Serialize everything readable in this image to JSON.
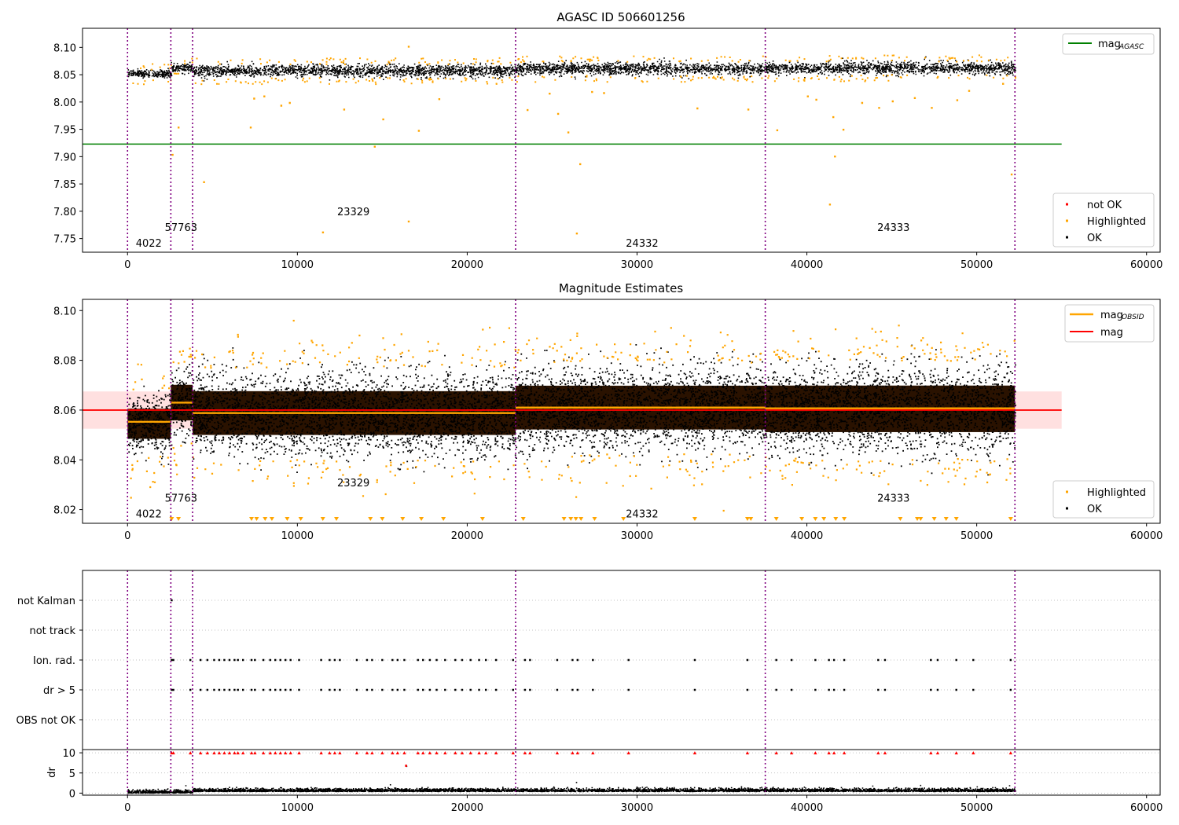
{
  "chart_data": [
    {
      "type": "scatter",
      "title": "AGASC ID 506601256",
      "xlim": [
        -2650,
        60800
      ],
      "ylim": [
        7.725,
        8.135
      ],
      "xticks": [
        0,
        10000,
        20000,
        30000,
        40000,
        50000,
        60000
      ],
      "yticks": [
        7.75,
        7.8,
        7.85,
        7.9,
        7.95,
        8.0,
        8.05,
        8.1
      ],
      "ytick_labels": [
        "7.75",
        "7.80",
        "7.85",
        "7.90",
        "7.95",
        "8.00",
        "8.05",
        "8.10"
      ],
      "hline": {
        "label": "mag",
        "label_sub": "AGASC",
        "y": 7.923,
        "x": [
          -2650,
          55000
        ],
        "color": "#008000"
      },
      "legend_top": "top-right",
      "legend_bottom": [
        {
          "label": "not OK",
          "color": "#ff0000"
        },
        {
          "label": "Highlighted",
          "color": "#ffa500"
        },
        {
          "label": "OK",
          "color": "#000000"
        }
      ],
      "obs_labels": [
        {
          "text": "4022",
          "x": 1250,
          "y": 7.742
        },
        {
          "text": "57763",
          "x": 3150,
          "y": 7.771
        },
        {
          "text": "23329",
          "x": 13300,
          "y": 7.8
        },
        {
          "text": "24332",
          "x": 30300,
          "y": 7.742
        },
        {
          "text": "24333",
          "x": 45100,
          "y": 7.771
        }
      ],
      "segments": [
        {
          "x0": 0,
          "x1": 2550,
          "mean": 8.053,
          "spread": 0.006
        },
        {
          "x0": 2550,
          "x1": 3830,
          "mean": 8.063,
          "spread": 0.007
        },
        {
          "x0": 3830,
          "x1": 22850,
          "mean": 8.058,
          "spread": 0.01
        },
        {
          "x0": 22850,
          "x1": 37550,
          "mean": 8.062,
          "spread": 0.01
        },
        {
          "x0": 37550,
          "x1": 52250,
          "mean": 8.063,
          "spread": 0.01
        }
      ],
      "highlighted_outliers": [
        [
          2950,
          7.955
        ],
        [
          2600,
          7.905
        ],
        [
          4450,
          7.855
        ],
        [
          7200,
          7.955
        ],
        [
          7400,
          8.008
        ],
        [
          8000,
          8.012
        ],
        [
          9000,
          7.995
        ],
        [
          9500,
          8.0
        ],
        [
          11450,
          7.763
        ],
        [
          12700,
          7.988
        ],
        [
          14500,
          7.92
        ],
        [
          15000,
          7.97
        ],
        [
          16500,
          7.783
        ],
        [
          17100,
          7.949
        ],
        [
          18300,
          8.007
        ],
        [
          16500,
          8.103
        ],
        [
          23500,
          7.987
        ],
        [
          24800,
          8.017
        ],
        [
          25300,
          7.98
        ],
        [
          25900,
          7.946
        ],
        [
          26400,
          7.761
        ],
        [
          26600,
          7.888
        ],
        [
          27300,
          8.02
        ],
        [
          28000,
          8.018
        ],
        [
          33500,
          7.99
        ],
        [
          36500,
          7.988
        ],
        [
          38200,
          7.95
        ],
        [
          40000,
          8.012
        ],
        [
          40500,
          8.006
        ],
        [
          41500,
          7.974
        ],
        [
          41600,
          7.902
        ],
        [
          41300,
          7.814
        ],
        [
          42100,
          7.951
        ],
        [
          43200,
          8.0
        ],
        [
          44200,
          7.991
        ],
        [
          45000,
          8.003
        ],
        [
          46300,
          8.009
        ],
        [
          47300,
          7.991
        ],
        [
          48800,
          8.005
        ],
        [
          49500,
          8.022
        ],
        [
          52000,
          7.869
        ],
        [
          51500,
          8.035
        ]
      ]
    },
    {
      "type": "scatter",
      "title": "Magnitude Estimates",
      "xlim": [
        -2650,
        60800
      ],
      "ylim": [
        8.0145,
        8.1045
      ],
      "xticks": [
        0,
        10000,
        20000,
        30000,
        40000,
        50000,
        60000
      ],
      "yticks": [
        8.02,
        8.04,
        8.06,
        8.08,
        8.1
      ],
      "ytick_labels": [
        "8.02",
        "8.04",
        "8.06",
        "8.08",
        "8.10"
      ],
      "mag_line": {
        "label": "mag",
        "y": 8.06,
        "band": [
          8.0525,
          8.0675
        ],
        "x": [
          -2650,
          55000
        ],
        "color": "#ff0000"
      },
      "mag_obsid_label": "mag",
      "mag_obsid_sub": "OBSID",
      "mag_obsid_color": "#ffa500",
      "mag_obsid": [
        {
          "x0": 0,
          "x1": 2550,
          "y": 8.0553
        },
        {
          "x0": 2550,
          "x1": 3830,
          "y": 8.063
        },
        {
          "x0": 3830,
          "x1": 22850,
          "y": 8.0588
        },
        {
          "x0": 22850,
          "x1": 37550,
          "y": 8.061
        },
        {
          "x0": 37550,
          "x1": 52250,
          "y": 8.0607
        }
      ],
      "legend_bottom": [
        {
          "label": "Highlighted",
          "color": "#ffa500"
        },
        {
          "label": "OK",
          "color": "#000000"
        }
      ],
      "obs_labels": [
        {
          "text": "4022",
          "x": 1250,
          "y": 8.0185
        },
        {
          "text": "57763",
          "x": 3150,
          "y": 8.0248
        },
        {
          "text": "23329",
          "x": 13300,
          "y": 8.031
        },
        {
          "text": "24332",
          "x": 30300,
          "y": 8.0185
        },
        {
          "text": "24333",
          "x": 45100,
          "y": 8.0248
        }
      ],
      "lower_markers_x": [
        2600,
        3000,
        7300,
        7600,
        8100,
        8500,
        9400,
        10200,
        11500,
        12300,
        14300,
        15000,
        16200,
        17300,
        18600,
        20900,
        23300,
        25700,
        26100,
        26400,
        26700,
        27500,
        29200,
        33400,
        36500,
        36700,
        38200,
        39700,
        40500,
        41000,
        41700,
        42200,
        45500,
        46500,
        46700,
        47500,
        48200,
        48800,
        52000
      ]
    },
    {
      "type": "scatter",
      "title": "",
      "xlim": [
        -2650,
        60800
      ],
      "category_ticks": [
        "not Kalman",
        "not track",
        "Ion. rad.",
        "dr > 5",
        "OBS not OK"
      ],
      "flag_x": [
        2600,
        2700,
        3700,
        4300,
        4700,
        5100,
        5400,
        5700,
        6000,
        6300,
        6500,
        6800,
        7300,
        7500,
        8000,
        8400,
        8700,
        9000,
        9300,
        9600,
        10100,
        11400,
        11900,
        12200,
        12500,
        13500,
        14100,
        14400,
        15000,
        15600,
        15900,
        16300,
        17100,
        17400,
        17800,
        18200,
        18700,
        19300,
        19700,
        20200,
        20700,
        21100,
        21700,
        22700,
        23400,
        23700,
        25300,
        26200,
        26500,
        27400,
        29500,
        33400,
        36500,
        38200,
        39100,
        40500,
        41300,
        41600,
        42200,
        44200,
        44600,
        47300,
        47700,
        48800,
        49800,
        52000
      ],
      "dr": {
        "ylabel": "dr",
        "ylim": [
          -0.5,
          10.8
        ],
        "yticks": [
          0,
          5,
          10
        ],
        "ytick_labels": [
          "0",
          "5",
          "10"
        ],
        "big_dr_outliers": [
          [
            16400,
            6.8
          ],
          [
            26400,
            2.8
          ],
          [
            3400,
            2.0
          ],
          [
            51900,
            2.0
          ]
        ]
      }
    }
  ],
  "obsid_boundaries": [
    0,
    2550,
    3830,
    22850,
    37550,
    52250
  ],
  "x_tick_labels": [
    "0",
    "10000",
    "20000",
    "30000",
    "40000",
    "50000",
    "60000"
  ],
  "colors": {
    "ok": "#000000",
    "highlighted": "#ffa500",
    "not_ok": "#ff0000",
    "boundary": "#800080",
    "grid": "#b0b0b0"
  }
}
